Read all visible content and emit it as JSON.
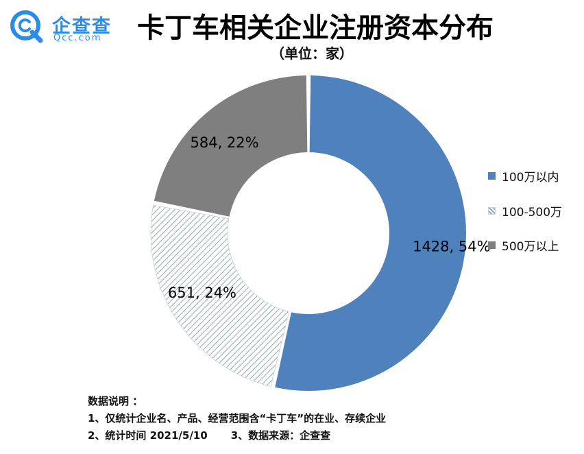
{
  "brand": {
    "name_cn": "企查查",
    "name_en": "Qcc.com",
    "color": "#2a8be8"
  },
  "header": {
    "title": "卡丁车相关企业注册资本分布",
    "unit": "（单位：家）"
  },
  "chart_data": {
    "type": "pie",
    "title": "卡丁车相关企业注册资本分布",
    "subtitle": "（单位：家）",
    "donut": true,
    "legend_position": "right",
    "series": [
      {
        "name": "100万以内",
        "value": 1428,
        "percent": 54,
        "label": "1428, 54%",
        "color": "#4f81bd",
        "pattern": "solid"
      },
      {
        "name": "100-500万",
        "value": 651,
        "percent": 24,
        "label": "651, 24%",
        "color": "#8faab8",
        "pattern": "diagonal-hatch"
      },
      {
        "name": "500万以上",
        "value": 584,
        "percent": 22,
        "label": "584, 22%",
        "color": "#7f7f7f",
        "pattern": "solid"
      }
    ]
  },
  "notes": {
    "heading": "数据说明 ：",
    "line1": "1、仅统计企业名、产品、经营范围含“卡丁车”的在业、存续企业",
    "line2a": "2、统计时间 2021/5/10",
    "line2b": "3、数据来源：企查查"
  }
}
